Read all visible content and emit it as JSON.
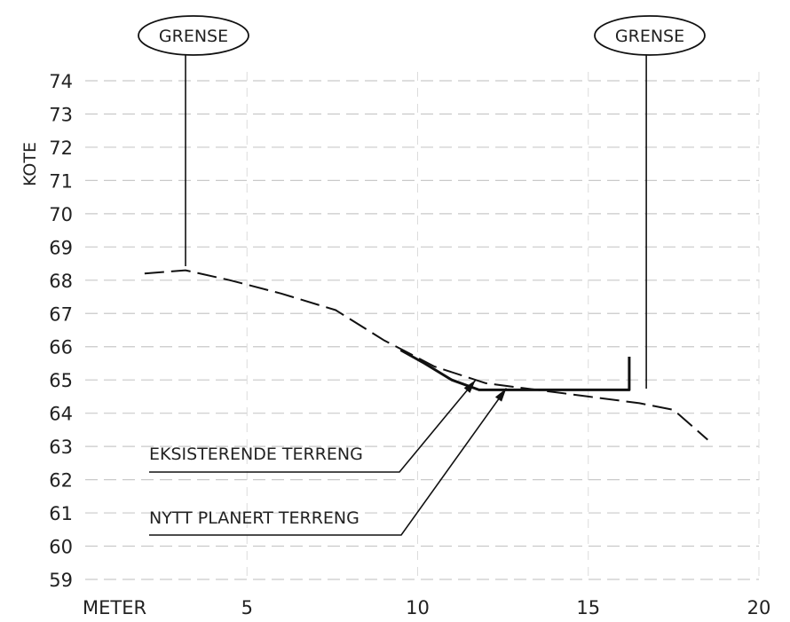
{
  "chart_data": {
    "type": "line",
    "xlabel": "METER",
    "ylabel": "KOTE",
    "xlim": [
      0,
      20
    ],
    "ylim": [
      59,
      74
    ],
    "x_ticks": [
      5,
      10,
      15,
      20
    ],
    "y_ticks": [
      59,
      60,
      61,
      62,
      63,
      64,
      65,
      66,
      67,
      68,
      69,
      70,
      71,
      72,
      73,
      74
    ],
    "grid": true,
    "series": [
      {
        "name": "EKSISTERENDE TERRENG",
        "style": "dashed",
        "x": [
          2.0,
          3.2,
          4.5,
          6.0,
          7.6,
          9.0,
          10.5,
          12.0,
          13.5,
          15.0,
          16.5,
          17.5,
          18.5
        ],
        "y": [
          68.2,
          68.3,
          68.0,
          67.6,
          67.1,
          66.2,
          65.4,
          64.9,
          64.7,
          64.5,
          64.3,
          64.1,
          63.2
        ]
      },
      {
        "name": "NYTT PLANERT TERRENG",
        "style": "solid",
        "x": [
          9.5,
          10.2,
          11.0,
          11.8,
          12.5,
          14.0,
          15.5,
          16.2,
          16.2
        ],
        "y": [
          65.9,
          65.5,
          65.0,
          64.7,
          64.7,
          64.7,
          64.7,
          64.7,
          65.7
        ]
      }
    ],
    "annotations": [
      {
        "text": "GRENSE",
        "x": 3.2
      },
      {
        "text": "GRENSE",
        "x": 16.7
      }
    ]
  }
}
